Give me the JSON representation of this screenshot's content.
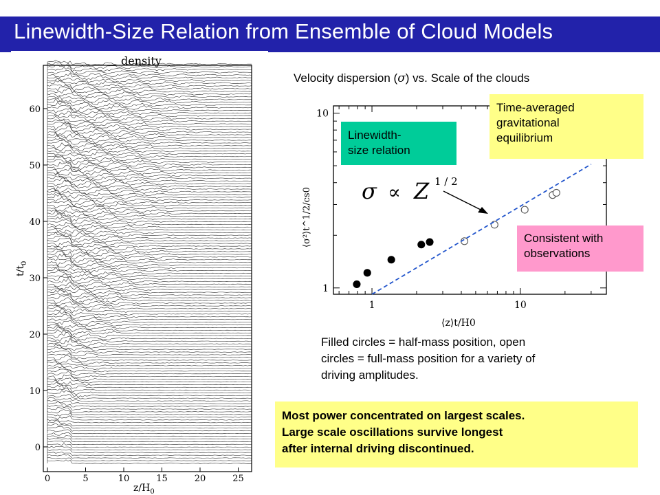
{
  "slide": {
    "title": "Linewidth-Size Relation from Ensemble of Cloud Models",
    "subtitle_pre": "Velocity dispersion (",
    "subtitle_sigma": "σ",
    "subtitle_post": ")  vs. Scale of the clouds",
    "box_linewidth": [
      "Linewidth-",
      "size relation"
    ],
    "box_equilibrium": [
      "Time-averaged",
      "gravitational",
      "equilibrium"
    ],
    "box_observations": [
      "Consistent with",
      "observations"
    ],
    "formula": {
      "sigma": "σ",
      "prop": "∝",
      "z": "Z",
      "exp": "1 / 2"
    },
    "caption": [
      "Filled circles = half-mass position, open",
      "circles = full-mass position for a variety of",
      "driving amplitudes."
    ],
    "note": [
      "Most power concentrated on largest scales.",
      "Large scale oscillations survive longest",
      "after internal driving discontinued."
    ],
    "colors": {
      "title_bg": "#2222aa",
      "box_linewidth": "#00cc99",
      "box_equilibrium": "#ffff88",
      "box_observations": "#ff99cc",
      "fit_line": "#2255cc"
    }
  },
  "density_plot": {
    "label": "density",
    "xlabel": "z/H",
    "xlabel_sub": "0",
    "ylabel": "t/t",
    "ylabel_sub": "0",
    "xticks": [
      "0",
      "5",
      "10",
      "15",
      "20",
      "25"
    ],
    "yticks": [
      "0",
      "10",
      "20",
      "30",
      "40",
      "50",
      "60"
    ]
  },
  "chart_data": {
    "type": "scatter",
    "title": "",
    "xlabel": "⟨z⟩t/H0",
    "ylabel": "⟨σ²⟩t^1/2/cs0",
    "xscale": "log",
    "yscale": "log",
    "xlim": [
      0.55,
      38
    ],
    "ylim": [
      0.92,
      11
    ],
    "xtick_labels": [
      "1",
      "10"
    ],
    "ytick_labels": [
      "1",
      "10"
    ],
    "grid": false,
    "series": [
      {
        "marker": "filled-circle",
        "points": [
          [
            0.79,
            1.05
          ],
          [
            0.93,
            1.22
          ],
          [
            1.35,
            1.45
          ],
          [
            2.15,
            1.77
          ],
          [
            2.45,
            1.83
          ]
        ]
      },
      {
        "marker": "open-circle",
        "points": [
          [
            4.2,
            1.85
          ],
          [
            6.7,
            2.3
          ],
          [
            10.7,
            2.8
          ],
          [
            16.5,
            3.4
          ],
          [
            17.5,
            3.5
          ]
        ]
      },
      {
        "style": "dashed-line",
        "points": [
          [
            1.0,
            0.92
          ],
          [
            30,
            5.1
          ]
        ]
      }
    ]
  }
}
